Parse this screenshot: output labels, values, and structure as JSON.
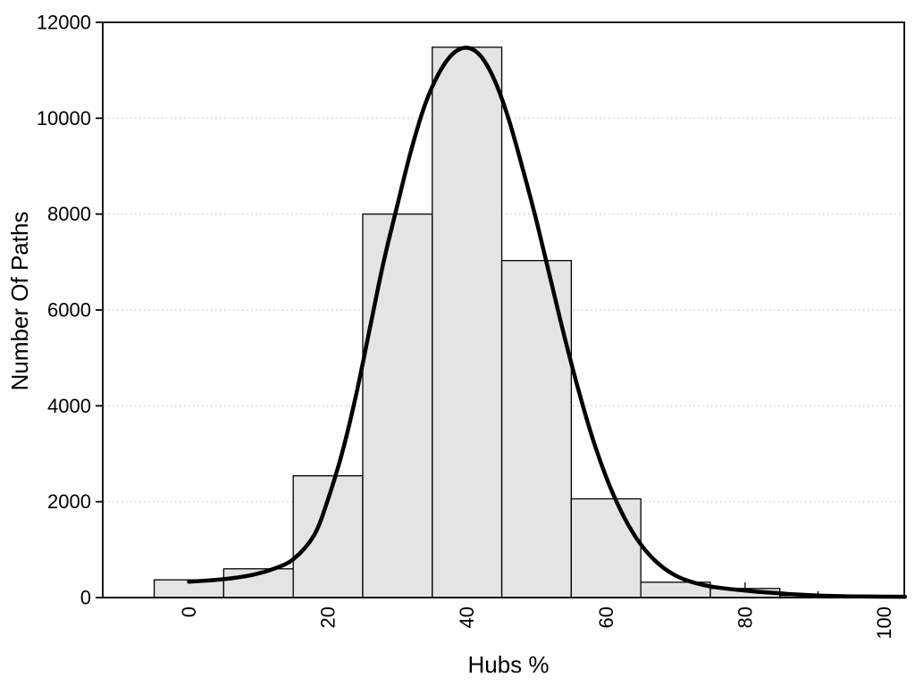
{
  "chart_data": {
    "type": "bar",
    "subtype": "histogram_with_density_curve",
    "title": "",
    "xlabel": "Hubs %",
    "ylabel": "Number Of Paths",
    "xlim": [
      -12.4,
      102.9
    ],
    "ylim": [
      0,
      12000
    ],
    "x_ticks": [
      0,
      20,
      40,
      60,
      80,
      100
    ],
    "y_ticks": [
      0,
      2000,
      4000,
      6000,
      8000,
      10000,
      12000
    ],
    "grid": "horizontal-dotted",
    "legend": "none",
    "bin_breaks": [
      -5,
      5,
      15,
      25,
      35,
      45,
      55,
      65,
      75,
      85,
      95
    ],
    "bin_counts": [
      370,
      600,
      2540,
      8000,
      11480,
      7030,
      2060,
      320,
      190,
      40
    ],
    "tail_marks": [
      {
        "x": 80,
        "v0": 190,
        "v1": 320
      },
      {
        "x": 90.5,
        "v0": 0,
        "v1": 135
      }
    ],
    "curve": {
      "name": "density",
      "points": [
        [
          0,
          330
        ],
        [
          3,
          360
        ],
        [
          6,
          400
        ],
        [
          9,
          470
        ],
        [
          12,
          590
        ],
        [
          15,
          800
        ],
        [
          18,
          1300
        ],
        [
          20,
          2050
        ],
        [
          22,
          3000
        ],
        [
          24,
          4200
        ],
        [
          26,
          5600
        ],
        [
          28,
          7000
        ],
        [
          30,
          8200
        ],
        [
          32,
          9350
        ],
        [
          34,
          10300
        ],
        [
          36,
          10950
        ],
        [
          38,
          11350
        ],
        [
          40,
          11470
        ],
        [
          42,
          11290
        ],
        [
          44,
          10780
        ],
        [
          46,
          9980
        ],
        [
          48,
          8950
        ],
        [
          50,
          7850
        ],
        [
          52,
          6650
        ],
        [
          54,
          5450
        ],
        [
          56,
          4350
        ],
        [
          58,
          3350
        ],
        [
          60,
          2520
        ],
        [
          62,
          1850
        ],
        [
          64,
          1320
        ],
        [
          66,
          930
        ],
        [
          68,
          650
        ],
        [
          70,
          460
        ],
        [
          72,
          340
        ],
        [
          74,
          262
        ],
        [
          76,
          210
        ],
        [
          79,
          160
        ],
        [
          82,
          120
        ],
        [
          85,
          88
        ],
        [
          88,
          60
        ],
        [
          91,
          40
        ],
        [
          94,
          28
        ],
        [
          97,
          22
        ],
        [
          100,
          19
        ],
        [
          103,
          17
        ]
      ]
    },
    "colors": {
      "background": "#ffffff",
      "bar_fill": "#e4e4e4",
      "bar_border": "#000000",
      "curve": "#000000",
      "grid": "#c4c4c4",
      "frame": "#000000",
      "text": "#000000"
    }
  }
}
